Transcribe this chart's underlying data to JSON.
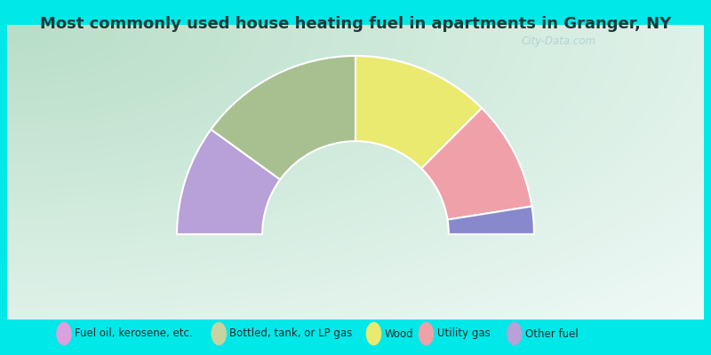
{
  "title": "Most commonly used house heating fuel in apartments in Granger, NY",
  "title_fontsize": 13,
  "title_color": "#1a3a3a",
  "cyan_color": "#00e8e8",
  "chart_bg_colors": [
    "#b8ddc8",
    "#c8e8d8",
    "#dff0e8",
    "#eef8f2",
    "#f8fefb"
  ],
  "segments": [
    {
      "label": "Other fuel",
      "value": 20,
      "color": "#b8a0d8"
    },
    {
      "label": "Bottled, tank, or LP gas",
      "value": 30,
      "color": "#a8c090"
    },
    {
      "label": "Wood",
      "value": 25,
      "color": "#eaea70"
    },
    {
      "label": "Utility gas",
      "value": 20,
      "color": "#f0a0a8"
    },
    {
      "label": "Fuel oil, kerosene, etc.",
      "value": 5,
      "color": "#8888cc"
    }
  ],
  "legend_items": [
    {
      "label": "Fuel oil, kerosene, etc.",
      "color": "#dda0dd"
    },
    {
      "label": "Bottled, tank, or LP gas",
      "color": "#c8d4a0"
    },
    {
      "label": "Wood",
      "color": "#eaea70"
    },
    {
      "label": "Utility gas",
      "color": "#f0a0a8"
    },
    {
      "label": "Other fuel",
      "color": "#b8a0d8"
    }
  ],
  "outer_r": 1.15,
  "inner_r": 0.6,
  "watermark": "City-Data.com",
  "edge_color": "white",
  "edge_lw": 1.5
}
